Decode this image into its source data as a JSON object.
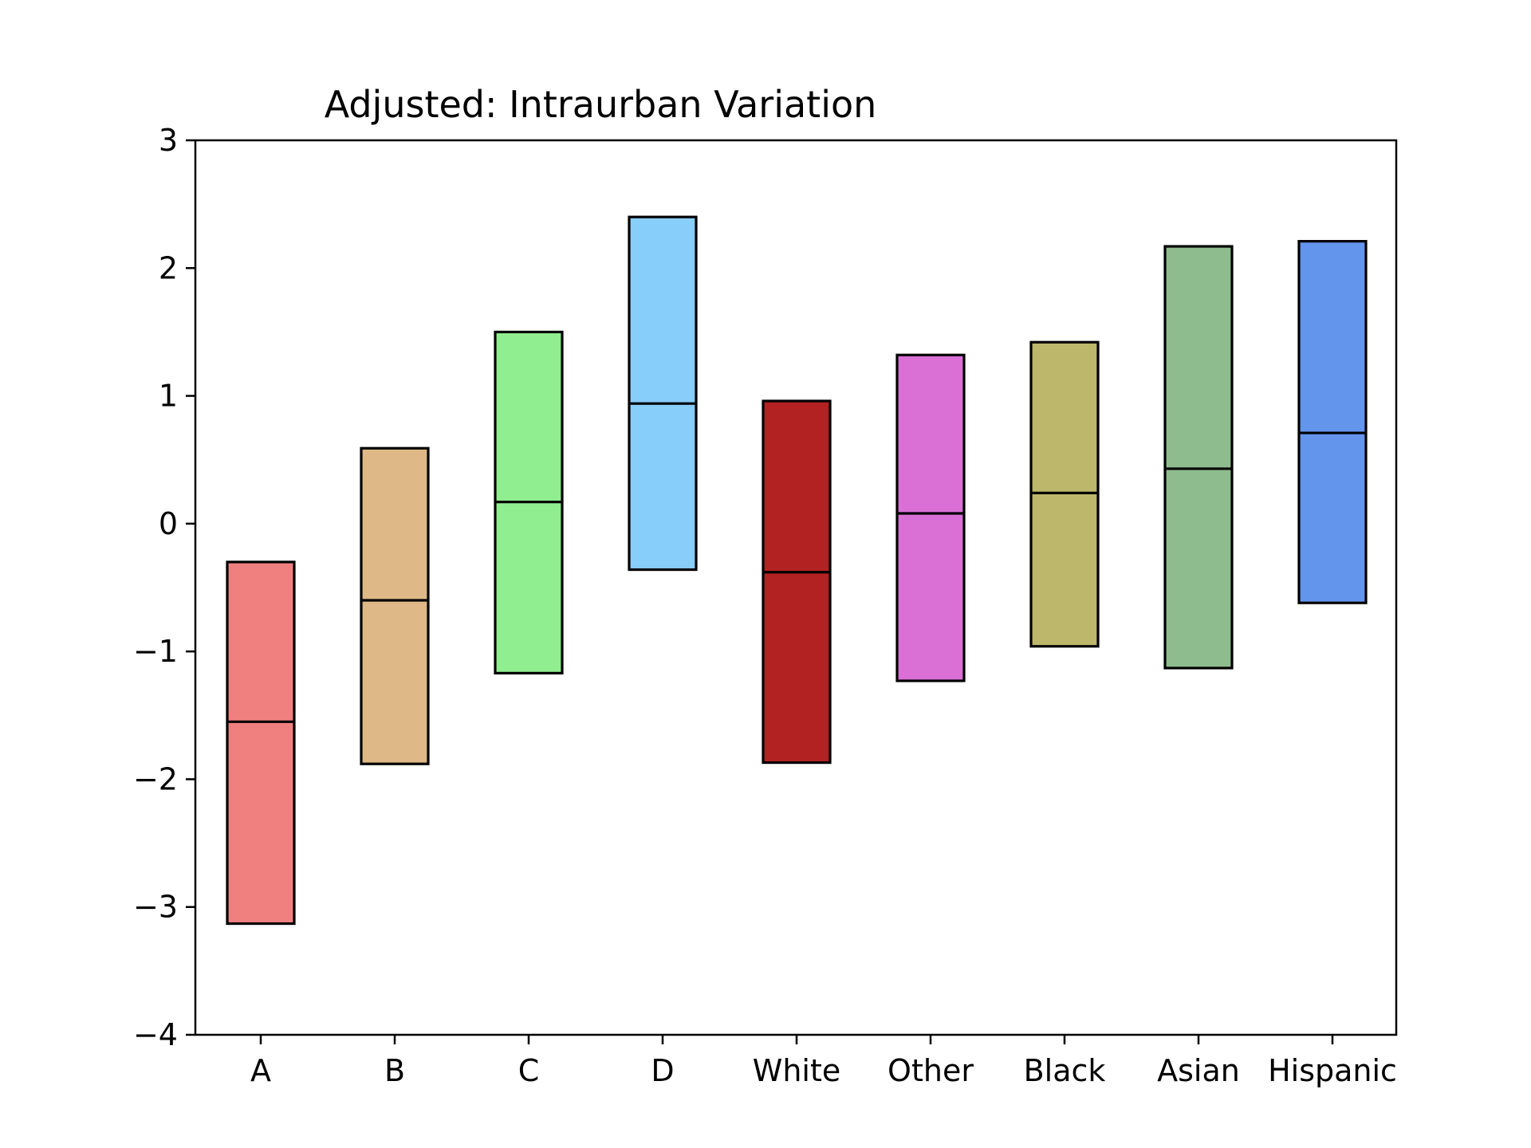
{
  "chart_data": {
    "type": "bar",
    "title": "Adjusted: Intraurban Variation",
    "xlabel": "",
    "ylabel": "",
    "ylim": [
      -4,
      3
    ],
    "yticks": [
      -4,
      -3,
      -2,
      -1,
      0,
      1,
      2,
      3
    ],
    "ytick_labels": [
      "−4",
      "−3",
      "−2",
      "−1",
      "0",
      "1",
      "2",
      "3"
    ],
    "grid": false,
    "categories": [
      "A",
      "B",
      "C",
      "D",
      "White",
      "Other",
      "Black",
      "Asian",
      "Hispanic"
    ],
    "bars": [
      {
        "category": "A",
        "low": -3.13,
        "high": -0.3,
        "median": -1.55,
        "color": "#F08080"
      },
      {
        "category": "B",
        "low": -1.88,
        "high": 0.59,
        "median": -0.6,
        "color": "#DEB887"
      },
      {
        "category": "C",
        "low": -1.17,
        "high": 1.5,
        "median": 0.17,
        "color": "#90EE90"
      },
      {
        "category": "D",
        "low": -0.36,
        "high": 2.4,
        "median": 0.94,
        "color": "#87CEFA"
      },
      {
        "category": "White",
        "low": -1.87,
        "high": 0.96,
        "median": -0.38,
        "color": "#B22222"
      },
      {
        "category": "Other",
        "low": -1.23,
        "high": 1.32,
        "median": 0.08,
        "color": "#DA70D6"
      },
      {
        "category": "Black",
        "low": -0.96,
        "high": 1.42,
        "median": 0.24,
        "color": "#BDB76B"
      },
      {
        "category": "Asian",
        "low": -1.13,
        "high": 2.17,
        "median": 0.43,
        "color": "#8FBC8F"
      },
      {
        "category": "Hispanic",
        "low": -0.62,
        "high": 2.21,
        "median": 0.71,
        "color": "#6495ED"
      }
    ]
  }
}
